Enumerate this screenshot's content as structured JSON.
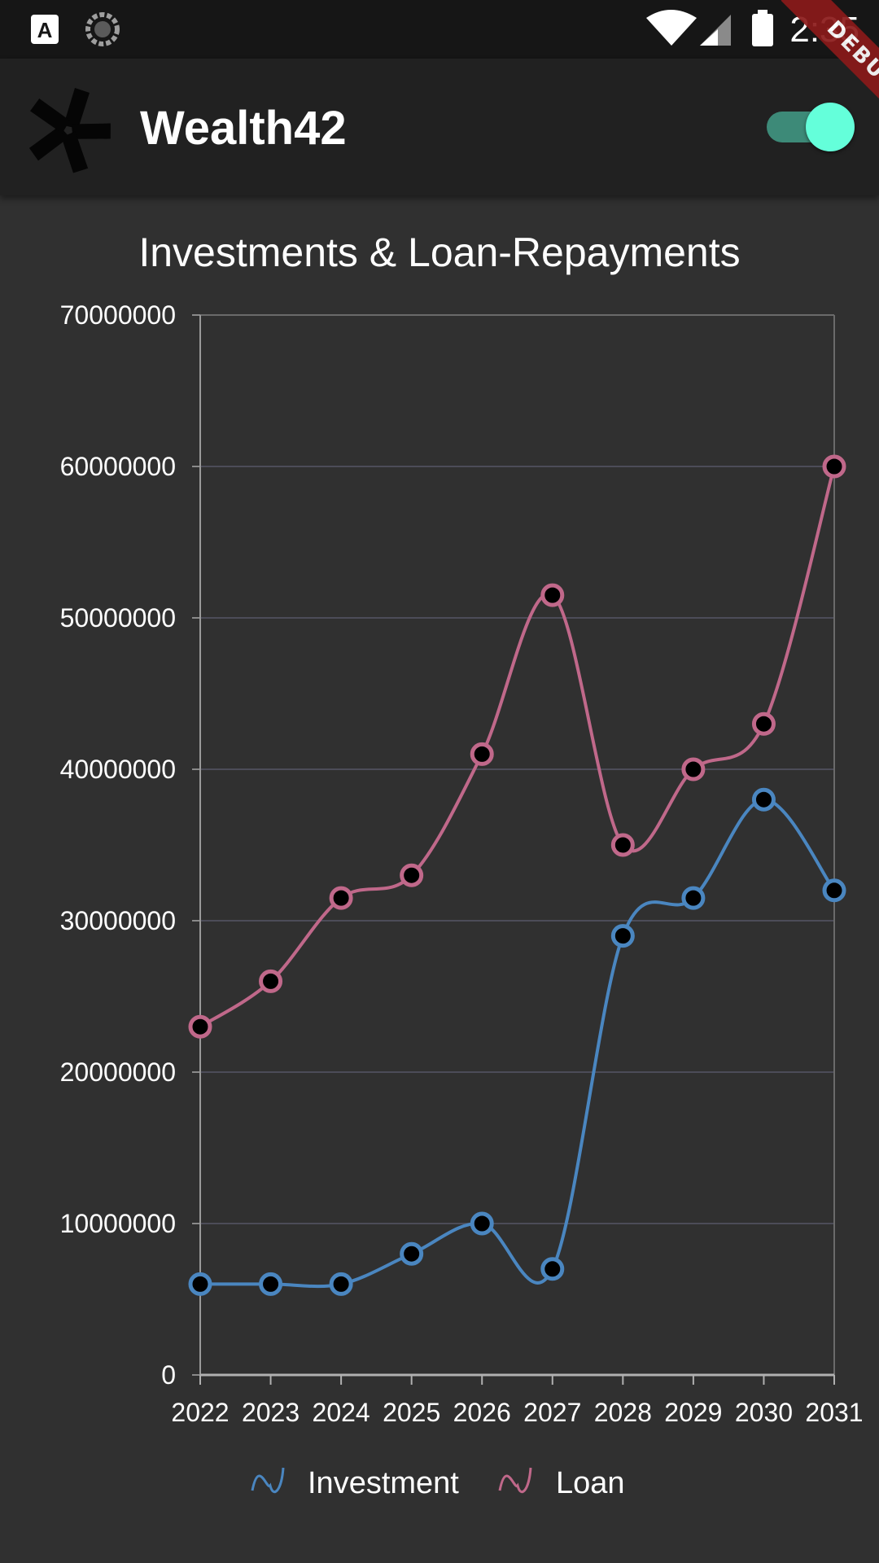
{
  "status_bar": {
    "time": "2:35",
    "icons": [
      "notification-a-icon",
      "sync-spinner-icon",
      "wifi-icon",
      "cell-signal-icon",
      "battery-icon"
    ]
  },
  "app_bar": {
    "title": "Wealth42",
    "logo_icon": "pinwheel-logo-icon",
    "toggle_on": true
  },
  "debug_banner": "DEBUG",
  "colors": {
    "investment": "#4a86c0",
    "loan": "#c0688a",
    "toggle_thumb": "#64ffda",
    "toggle_track": "#3d8a78",
    "background": "#303030",
    "app_bar": "#212121"
  },
  "chart_data": {
    "type": "line",
    "title": "Investments & Loan-Repayments",
    "xlabel": "",
    "ylabel": "",
    "categories": [
      "2022",
      "2023",
      "2024",
      "2025",
      "2026",
      "2027",
      "2028",
      "2029",
      "2030",
      "2031"
    ],
    "ylim": [
      0,
      70000000
    ],
    "yticks": [
      "0",
      "10000000",
      "20000000",
      "30000000",
      "40000000",
      "50000000",
      "60000000",
      "70000000"
    ],
    "grid": true,
    "legend_position": "bottom",
    "smooth": true,
    "series": [
      {
        "name": "Investment",
        "values": [
          6000000,
          6000000,
          6000000,
          8000000,
          10000000,
          7000000,
          29000000,
          31500000,
          38000000,
          32000000
        ]
      },
      {
        "name": "Loan",
        "values": [
          23000000,
          26000000,
          31500000,
          33000000,
          41000000,
          51500000,
          35000000,
          40000000,
          43000000,
          60000000
        ]
      }
    ]
  }
}
